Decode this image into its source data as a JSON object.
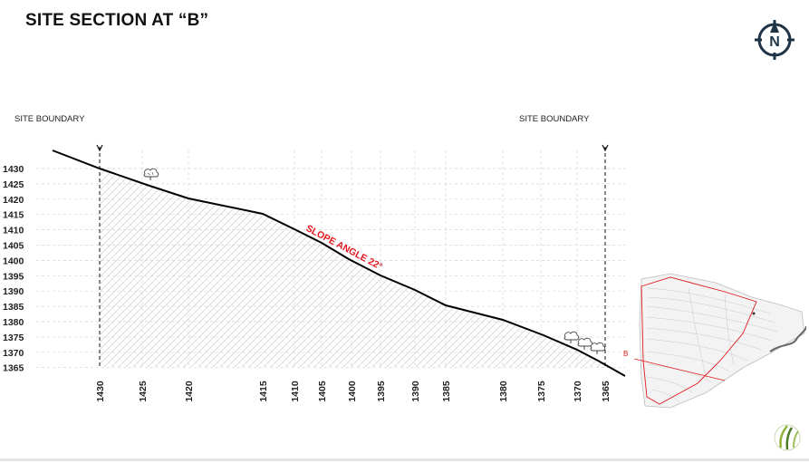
{
  "title": "SITE SECTION AT “B”",
  "boundary_labels": {
    "left": "SITE BOUNDARY",
    "right": "SITE BOUNDARY"
  },
  "elevation_axis": [
    1430,
    1425,
    1420,
    1415,
    1410,
    1405,
    1400,
    1395,
    1390,
    1385,
    1380,
    1375,
    1370,
    1365
  ],
  "station_labels": [
    {
      "label": "1430",
      "emphasis": true
    },
    {
      "label": "1425"
    },
    {
      "label": "1420"
    },
    {
      "label": "1415",
      "emphasis": true
    },
    {
      "label": "1410"
    },
    {
      "label": "1405"
    },
    {
      "label": "1400"
    },
    {
      "label": "1395"
    },
    {
      "label": "1390"
    },
    {
      "label": "1385"
    },
    {
      "label": "1380"
    },
    {
      "label": "1375"
    },
    {
      "label": "1370"
    },
    {
      "label": "1365",
      "emphasis": true
    }
  ],
  "slope_annotation": "SLOPE ANGLE 22°",
  "section_marker": "B",
  "compass": {
    "icon": "north-arrow-icon",
    "letter": "N"
  },
  "colors": {
    "annotation_red": "#e0191f",
    "ground_line": "#000000",
    "hatch": "#c8c8c8"
  }
}
